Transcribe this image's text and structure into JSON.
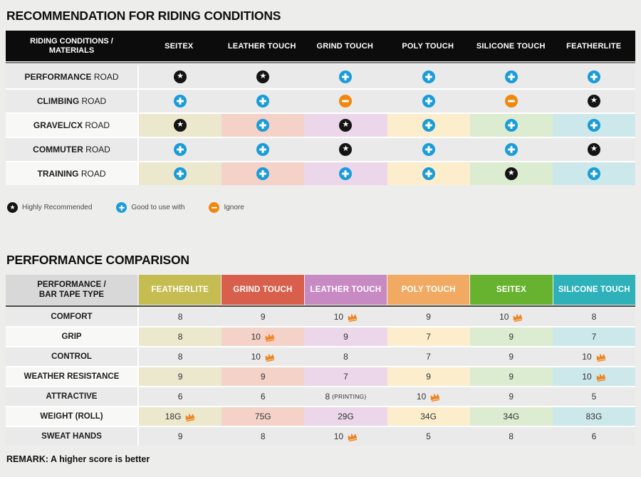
{
  "palette": {
    "row_gray": "#eaeaea",
    "row_light": "#f8f8f6",
    "tints": [
      "#ebe8cd",
      "#f5d2c8",
      "#ecd7ea",
      "#fceecd",
      "#dcecd1",
      "#cde8eb"
    ],
    "header_black": "#0c0c0c",
    "header_gray": "#d8d8d8",
    "icon_star_bg": "#141414",
    "icon_plus_bg": "#1b9cd8",
    "icon_minus_bg": "#f0870f",
    "crown": "#ef8522"
  },
  "icons": {
    "star_glyph": "★",
    "star_name": "star-in-circle",
    "plus_name": "plus-in-circle",
    "minus_name": "minus-in-circle",
    "crown_name": "crown"
  },
  "chart_data": [
    {
      "type": "table",
      "title": "RECOMMENDATION FOR RIDING CONDITIONS",
      "row_header": [
        "RIDING CONDITIONS /",
        "MATERIALS"
      ],
      "columns": [
        "SEITEX",
        "LEATHER TOUCH",
        "GRIND TOUCH",
        "POLY TOUCH",
        "SILICONE TOUCH",
        "FEATHERLITE"
      ],
      "rows": [
        {
          "label_bold": "PERFORMANCE",
          "label_rest": "ROAD",
          "tinted": false,
          "values": [
            "highly_recommended",
            "highly_recommended",
            "good_to_use_with",
            "good_to_use_with",
            "good_to_use_with",
            "good_to_use_with"
          ]
        },
        {
          "label_bold": "CLIMBING",
          "label_rest": "ROAD",
          "tinted": false,
          "values": [
            "good_to_use_with",
            "good_to_use_with",
            "ignore",
            "good_to_use_with",
            "ignore",
            "highly_recommended"
          ]
        },
        {
          "label_bold": "GRAVEL/CX",
          "label_rest": "ROAD",
          "tinted": true,
          "values": [
            "highly_recommended",
            "good_to_use_with",
            "highly_recommended",
            "good_to_use_with",
            "good_to_use_with",
            "good_to_use_with"
          ]
        },
        {
          "label_bold": "COMMUTER",
          "label_rest": "ROAD",
          "tinted": false,
          "values": [
            "good_to_use_with",
            "good_to_use_with",
            "highly_recommended",
            "good_to_use_with",
            "good_to_use_with",
            "highly_recommended"
          ]
        },
        {
          "label_bold": "TRAINING",
          "label_rest": "ROAD",
          "tinted": true,
          "values": [
            "good_to_use_with",
            "good_to_use_with",
            "good_to_use_with",
            "good_to_use_with",
            "highly_recommended",
            "good_to_use_with"
          ]
        }
      ],
      "legend": [
        {
          "key": "highly_recommended",
          "label": "Highly Recommended"
        },
        {
          "key": "good_to_use_with",
          "label": "Good to use with"
        },
        {
          "key": "ignore",
          "label": "Ignore"
        }
      ]
    },
    {
      "type": "table",
      "title": "PERFORMANCE COMPARISON",
      "row_header": [
        "PERFORMANCE /",
        "BAR TAPE TYPE"
      ],
      "columns": [
        {
          "label": "FEATHERLITE",
          "color": "#c5bd52"
        },
        {
          "label": "GRIND TOUCH",
          "color": "#d75f4b"
        },
        {
          "label": "LEATHER TOUCH",
          "color": "#c78ac2"
        },
        {
          "label": "POLY TOUCH",
          "color": "#f2aa63"
        },
        {
          "label": "SEITEX",
          "color": "#67b22e"
        },
        {
          "label": "SILICONE TOUCH",
          "color": "#2fb1ba"
        }
      ],
      "rows": [
        {
          "label": "COMFORT",
          "tinted": false,
          "cells": [
            {
              "value": "8"
            },
            {
              "value": "9"
            },
            {
              "value": "10",
              "crown": true
            },
            {
              "value": "9"
            },
            {
              "value": "10",
              "crown": true
            },
            {
              "value": "8"
            }
          ]
        },
        {
          "label": "GRIP",
          "tinted": true,
          "cells": [
            {
              "value": "8"
            },
            {
              "value": "10",
              "crown": true
            },
            {
              "value": "9"
            },
            {
              "value": "7"
            },
            {
              "value": "9"
            },
            {
              "value": "7"
            }
          ]
        },
        {
          "label": "CONTROL",
          "tinted": false,
          "cells": [
            {
              "value": "8"
            },
            {
              "value": "10",
              "crown": true
            },
            {
              "value": "8"
            },
            {
              "value": "7"
            },
            {
              "value": "9"
            },
            {
              "value": "10",
              "crown": true
            }
          ]
        },
        {
          "label": "WEATHER RESISTANCE",
          "tinted": true,
          "cells": [
            {
              "value": "9"
            },
            {
              "value": "9"
            },
            {
              "value": "7"
            },
            {
              "value": "9"
            },
            {
              "value": "9"
            },
            {
              "value": "10",
              "crown": true
            }
          ]
        },
        {
          "label": "ATTRACTIVE",
          "tinted": false,
          "cells": [
            {
              "value": "6"
            },
            {
              "value": "6"
            },
            {
              "value": "8",
              "note": "(PRINTING)"
            },
            {
              "value": "10",
              "crown": true
            },
            {
              "value": "9"
            },
            {
              "value": "5"
            }
          ]
        },
        {
          "label": "WEIGHT (ROLL)",
          "tinted": true,
          "cells": [
            {
              "value": "18G",
              "crown": true
            },
            {
              "value": "75G"
            },
            {
              "value": "29G"
            },
            {
              "value": "34G"
            },
            {
              "value": "34G"
            },
            {
              "value": "83G"
            }
          ]
        },
        {
          "label": "SWEAT HANDS",
          "tinted": false,
          "cells": [
            {
              "value": "9"
            },
            {
              "value": "8"
            },
            {
              "value": "10",
              "crown": true
            },
            {
              "value": "5"
            },
            {
              "value": "8"
            },
            {
              "value": "6"
            }
          ]
        }
      ],
      "remark": "REMARK: A higher score is better"
    }
  ]
}
